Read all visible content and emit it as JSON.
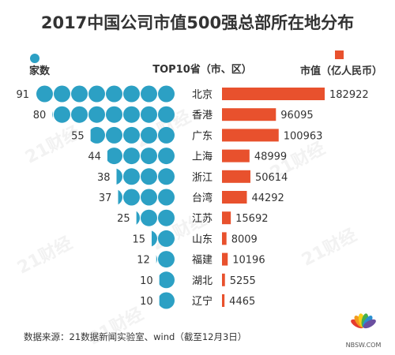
{
  "chart_data": {
    "type": "bar",
    "title": "2017中国公司市值500强总部所在地分布",
    "left_legend": "家数",
    "center_header": "TOP10省（市、区）",
    "right_legend": "市值（亿人民币）",
    "source": "数据来源：21数据新闻实验室、wind（截至12月3日）",
    "watermark": "21财经",
    "logo_text": "NBSW.COM",
    "categories": [
      "北京",
      "香港",
      "广东",
      "上海",
      "浙江",
      "台湾",
      "江苏",
      "山东",
      "福建",
      "湖北",
      "辽宁"
    ],
    "series": [
      {
        "name": "家数",
        "values": [
          91,
          80,
          55,
          44,
          38,
          37,
          25,
          15,
          12,
          10,
          10
        ]
      },
      {
        "name": "市值（亿人民币）",
        "values": [
          182922,
          96095,
          100963,
          48999,
          50614,
          44292,
          15692,
          8009,
          10196,
          5255,
          4465
        ]
      }
    ],
    "colors": {
      "count_dots": "#2ca0c4",
      "market_bars": "#e8512d",
      "title": "#333333"
    }
  }
}
